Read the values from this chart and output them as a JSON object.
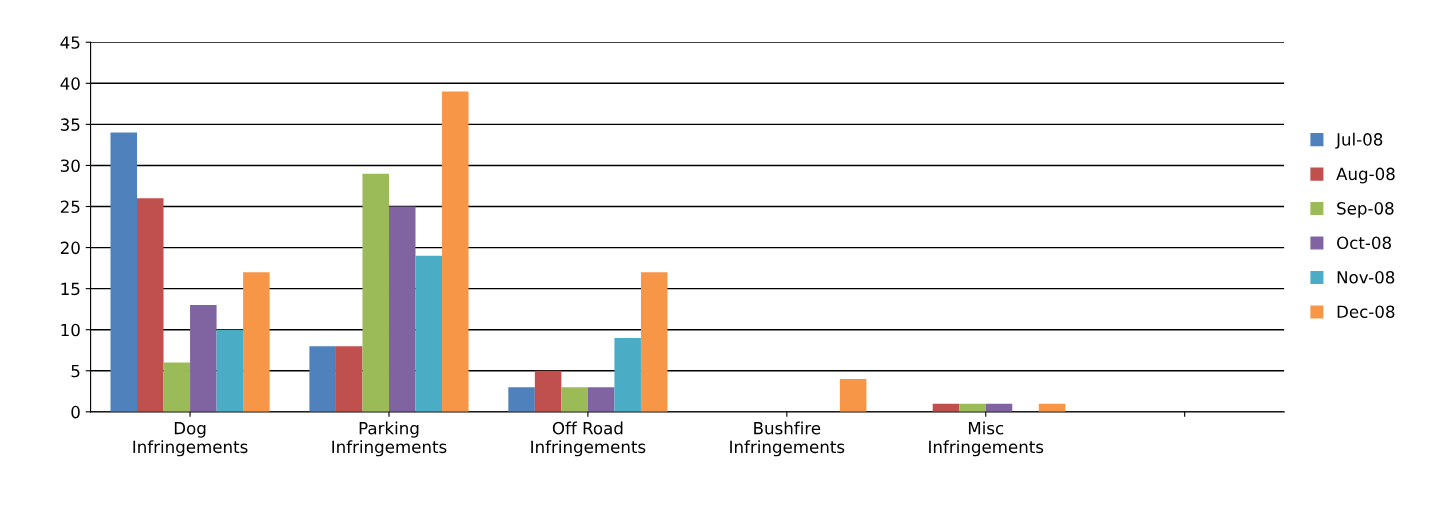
{
  "chart_data": {
    "type": "bar",
    "categories": [
      "Dog\nInfringements",
      "Parking\nInfringements",
      "Off Road\nInfringements",
      "Bushfire\nInfringements",
      "Misc\nInfringements",
      null
    ],
    "series": [
      {
        "name": "Jul-08",
        "color": "#4f81bd",
        "values": [
          34,
          8,
          3,
          0,
          0,
          null
        ]
      },
      {
        "name": "Aug-08",
        "color": "#c0504d",
        "values": [
          26,
          8,
          5,
          0,
          1,
          null
        ]
      },
      {
        "name": "Sep-08",
        "color": "#9bbb59",
        "values": [
          6,
          29,
          3,
          0,
          1,
          null
        ]
      },
      {
        "name": "Oct-08",
        "color": "#8064a2",
        "values": [
          13,
          25,
          3,
          0,
          1,
          null
        ]
      },
      {
        "name": "Nov-08",
        "color": "#4bacc6",
        "values": [
          10,
          19,
          9,
          0,
          0,
          null
        ]
      },
      {
        "name": "Dec-08",
        "color": "#f79646",
        "values": [
          17,
          39,
          17,
          4,
          1,
          null
        ]
      }
    ],
    "ylim": [
      0,
      45
    ],
    "yticks": [
      0,
      5,
      10,
      15,
      20,
      25,
      30,
      35,
      40,
      45
    ],
    "grid": "y",
    "legend": "right"
  }
}
